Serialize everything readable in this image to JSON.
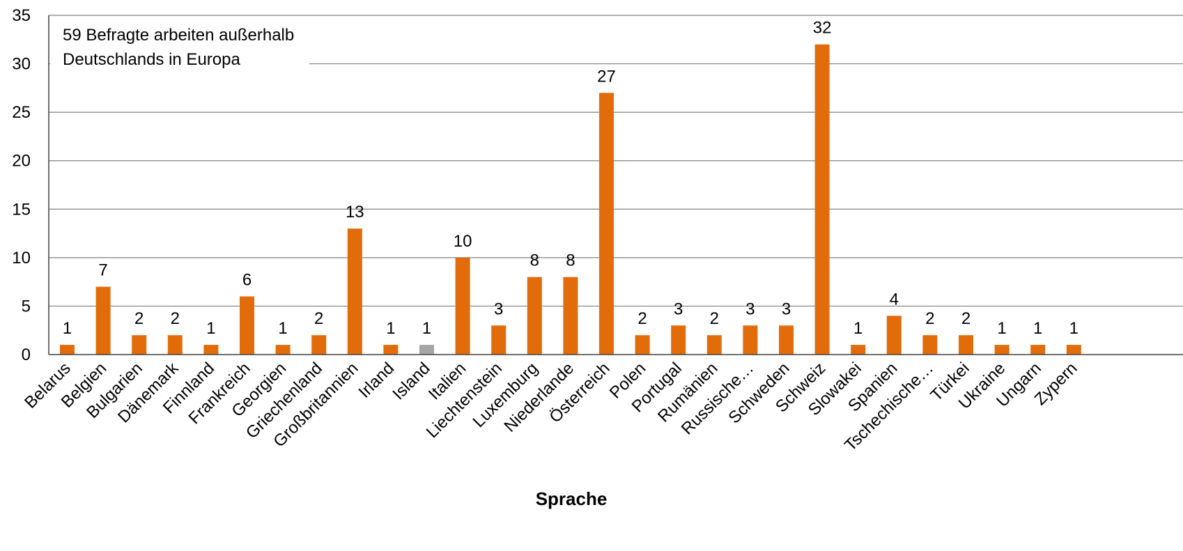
{
  "chart_data": {
    "type": "bar",
    "title": "",
    "xlabel": "Sprache",
    "ylabel": "",
    "ylim": [
      0,
      35
    ],
    "yticks": [
      0,
      5,
      10,
      15,
      20,
      25,
      30,
      35
    ],
    "grid": true,
    "annotation_lines": [
      "59 Befragte arbeiten außerhalb",
      "Deutschlands in Europa"
    ],
    "categories": [
      "Belarus",
      "Belgien",
      "Bulgarien",
      "Dänemark",
      "Finnland",
      "Frankreich",
      "Georgien",
      "Griechenland",
      "Großbritannien",
      "Irland",
      "Island",
      "Italien",
      "Liechtenstein",
      "Luxemburg",
      "Niederlande",
      "Österreich",
      "Polen",
      "Portugal",
      "Rumänien",
      "Russische…",
      "Schweden",
      "Schweiz",
      "Slowakei",
      "Spanien",
      "Tschechische…",
      "Türkei",
      "Ukraine",
      "Ungarn",
      "Zypern"
    ],
    "values": [
      1,
      7,
      2,
      2,
      1,
      6,
      1,
      2,
      13,
      1,
      1,
      10,
      3,
      8,
      8,
      27,
      2,
      3,
      2,
      3,
      3,
      32,
      1,
      4,
      2,
      2,
      1,
      1,
      1
    ],
    "show_data_labels": [
      true,
      true,
      true,
      true,
      true,
      true,
      true,
      true,
      true,
      true,
      true,
      true,
      true,
      true,
      true,
      true,
      true,
      true,
      true,
      true,
      true,
      true,
      true,
      true,
      true,
      true,
      true,
      true,
      true
    ],
    "bar_colors": [
      "#E36C0A",
      "#E36C0A",
      "#E36C0A",
      "#E36C0A",
      "#E36C0A",
      "#E36C0A",
      "#E36C0A",
      "#E36C0A",
      "#E36C0A",
      "#E36C0A",
      "#A6A6A6",
      "#E36C0A",
      "#E36C0A",
      "#E36C0A",
      "#E36C0A",
      "#E36C0A",
      "#E36C0A",
      "#E36C0A",
      "#E36C0A",
      "#E36C0A",
      "#E36C0A",
      "#E36C0A",
      "#E36C0A",
      "#E36C0A",
      "#E36C0A",
      "#E36C0A",
      "#E36C0A",
      "#E36C0A",
      "#E36C0A"
    ],
    "colors": {
      "bar": "#E36C0A",
      "highlight_bar": "#A6A6A6",
      "grid": "#808080",
      "axis": "#404040"
    }
  }
}
